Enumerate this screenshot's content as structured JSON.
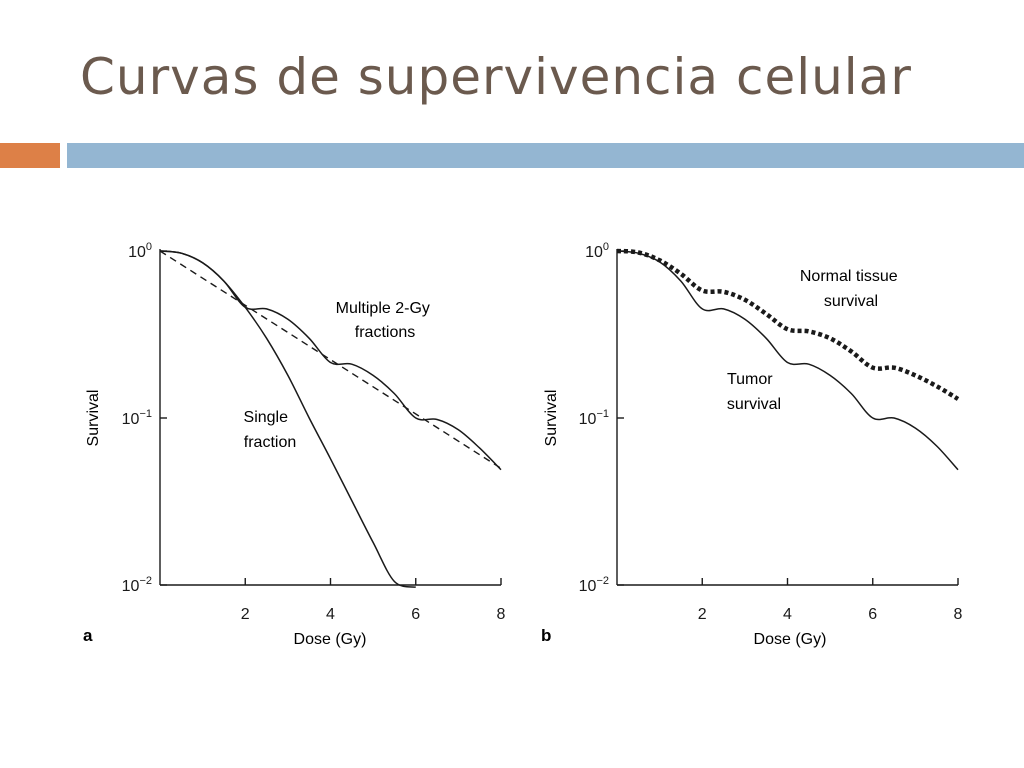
{
  "slide": {
    "title": "Curvas de supervivencia celular",
    "colors": {
      "title": "#6b5a4e",
      "accent_bar": "#dd8047",
      "main_bar": "#94b6d2",
      "ink": "#1a1a1a"
    }
  },
  "chart_data": [
    {
      "type": "line",
      "panel_label": "a",
      "xlabel": "Dose (Gy)",
      "ylabel": "Survival",
      "xlim": [
        0,
        8
      ],
      "ylim": [
        0.01,
        1
      ],
      "yscale": "log",
      "x_ticks": [
        2,
        4,
        6,
        8
      ],
      "x_tick_labels": [
        "2",
        "4",
        "6",
        "8"
      ],
      "y_ticks": [
        1,
        0.1,
        0.01
      ],
      "y_tick_base": [
        "10",
        "10",
        "10"
      ],
      "y_tick_exp": [
        "0",
        "−1",
        "−2"
      ],
      "series": [
        {
          "name": "Single fraction",
          "style": "solid",
          "x": [
            0,
            0.5,
            1,
            1.5,
            2,
            2.5,
            3,
            3.5,
            4,
            4.5,
            5,
            5.5,
            6
          ],
          "y": [
            1,
            0.97,
            0.85,
            0.66,
            0.46,
            0.3,
            0.18,
            0.1,
            0.057,
            0.032,
            0.018,
            0.0105,
            0.0097
          ]
        },
        {
          "name": "Multiple 2-Gy fractions",
          "style": "solid",
          "x": [
            0,
            0.5,
            1,
            1.5,
            2,
            2.5,
            3,
            3.5,
            4,
            4.5,
            5,
            5.5,
            6,
            6.5,
            7,
            7.5,
            8
          ],
          "y": [
            1,
            0.97,
            0.85,
            0.66,
            0.46,
            0.45,
            0.39,
            0.3,
            0.215,
            0.21,
            0.18,
            0.14,
            0.1,
            0.098,
            0.085,
            0.066,
            0.049
          ]
        },
        {
          "name": "",
          "style": "dashed",
          "x": [
            0,
            8
          ],
          "y": [
            1,
            0.05
          ]
        }
      ],
      "annotations": [
        {
          "lines": [
            "Multiple 2-Gy",
            "fractions"
          ]
        },
        {
          "lines": [
            "Single",
            "fraction"
          ]
        }
      ]
    },
    {
      "type": "line",
      "panel_label": "b",
      "xlabel": "Dose (Gy)",
      "ylabel": "Survival",
      "xlim": [
        0,
        8
      ],
      "ylim": [
        0.01,
        1
      ],
      "yscale": "log",
      "x_ticks": [
        2,
        4,
        6,
        8
      ],
      "x_tick_labels": [
        "2",
        "4",
        "6",
        "8"
      ],
      "y_ticks": [
        1,
        0.1,
        0.01
      ],
      "y_tick_base": [
        "10",
        "10",
        "10"
      ],
      "y_tick_exp": [
        "0",
        "−1",
        "−2"
      ],
      "series": [
        {
          "name": "Normal tissue survival",
          "style": "dotted",
          "x": [
            0,
            0.5,
            1,
            1.5,
            2,
            2.5,
            3,
            3.5,
            4,
            4.5,
            5,
            5.5,
            6,
            6.5,
            7,
            7.5,
            8
          ],
          "y": [
            1,
            0.98,
            0.88,
            0.73,
            0.58,
            0.57,
            0.51,
            0.42,
            0.34,
            0.33,
            0.3,
            0.25,
            0.2,
            0.2,
            0.18,
            0.155,
            0.13
          ]
        },
        {
          "name": "Tumor survival",
          "style": "solid",
          "x": [
            0,
            0.5,
            1,
            1.5,
            2,
            2.5,
            3,
            3.5,
            4,
            4.5,
            5,
            5.5,
            6,
            6.5,
            7,
            7.5,
            8
          ],
          "y": [
            1,
            0.97,
            0.86,
            0.66,
            0.45,
            0.45,
            0.39,
            0.3,
            0.215,
            0.21,
            0.18,
            0.14,
            0.1,
            0.1,
            0.087,
            0.068,
            0.049
          ]
        }
      ],
      "annotations": [
        {
          "lines": [
            "Normal tissue",
            "survival"
          ]
        },
        {
          "lines": [
            "Tumor",
            "survival"
          ]
        }
      ]
    }
  ]
}
